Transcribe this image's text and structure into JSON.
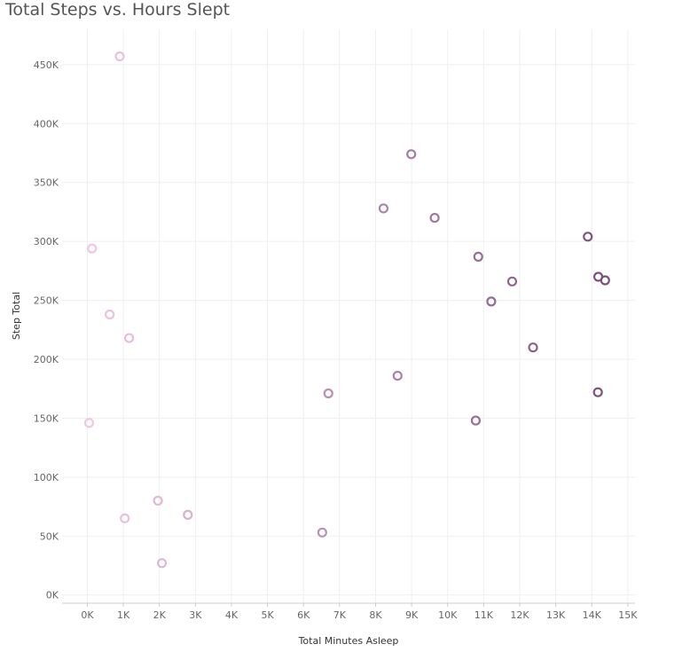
{
  "chart_data": {
    "type": "scatter",
    "title": "Total Steps vs. Hours Slept",
    "xlabel": "Total Minutes Asleep",
    "ylabel": "Step Total",
    "xlim": [
      -700,
      15200
    ],
    "ylim": [
      -7000,
      480000
    ],
    "x_ticks": [
      0,
      1000,
      2000,
      3000,
      4000,
      5000,
      6000,
      7000,
      8000,
      9000,
      10000,
      11000,
      12000,
      13000,
      14000,
      15000
    ],
    "x_tick_labels": [
      "0K",
      "1K",
      "2K",
      "3K",
      "4K",
      "5K",
      "6K",
      "7K",
      "8K",
      "9K",
      "10K",
      "11K",
      "12K",
      "13K",
      "14K",
      "15K"
    ],
    "y_ticks": [
      0,
      50000,
      100000,
      150000,
      200000,
      250000,
      300000,
      350000,
      400000,
      450000
    ],
    "y_tick_labels": [
      "0K",
      "50K",
      "100K",
      "150K",
      "200K",
      "250K",
      "300K",
      "350K",
      "400K",
      "450K"
    ],
    "grid": true,
    "color_scale": [
      "#f0c8e2",
      "#7a4f7d"
    ],
    "points": [
      {
        "x": 900,
        "y": 457000
      },
      {
        "x": 130,
        "y": 294000
      },
      {
        "x": 620,
        "y": 238000
      },
      {
        "x": 1160,
        "y": 218000
      },
      {
        "x": 50,
        "y": 146000
      },
      {
        "x": 1960,
        "y": 80000
      },
      {
        "x": 2790,
        "y": 68000
      },
      {
        "x": 1040,
        "y": 65000
      },
      {
        "x": 2070,
        "y": 27000
      },
      {
        "x": 6520,
        "y": 53000
      },
      {
        "x": 6690,
        "y": 171000
      },
      {
        "x": 8610,
        "y": 186000
      },
      {
        "x": 8220,
        "y": 328000
      },
      {
        "x": 8990,
        "y": 374000
      },
      {
        "x": 9640,
        "y": 320000
      },
      {
        "x": 10850,
        "y": 287000
      },
      {
        "x": 11210,
        "y": 249000
      },
      {
        "x": 10780,
        "y": 148000
      },
      {
        "x": 11790,
        "y": 266000
      },
      {
        "x": 12370,
        "y": 210000
      },
      {
        "x": 13890,
        "y": 304000
      },
      {
        "x": 14180,
        "y": 270000
      },
      {
        "x": 14370,
        "y": 267000
      },
      {
        "x": 14170,
        "y": 172000
      }
    ]
  }
}
